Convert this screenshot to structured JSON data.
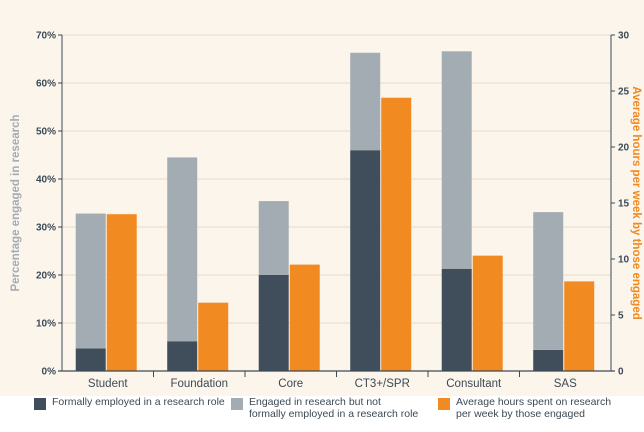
{
  "chart_data": {
    "type": "bar",
    "categories": [
      "Student",
      "Foundation",
      "Core",
      "CT3+/SPR",
      "Consultant",
      "SAS"
    ],
    "series": [
      {
        "name": "Formally employed in a research role",
        "axis": "left",
        "stack": "a",
        "values": [
          4.7,
          6.2,
          20.0,
          46.0,
          21.3,
          4.4
        ],
        "color": "#3f4e5a"
      },
      {
        "name": "Engaged in research but not formally employed in a research role",
        "axis": "left",
        "stack": "a",
        "values": [
          28.1,
          38.3,
          15.4,
          20.3,
          45.3,
          28.7
        ],
        "color": "#a4acb3"
      },
      {
        "name": "Average hours spent on research per week by those engaged",
        "axis": "right",
        "stack": "b",
        "values": [
          14.0,
          6.1,
          9.5,
          24.4,
          10.3,
          8.0
        ],
        "color": "#f18a21"
      }
    ],
    "ylabel": "Percentage engaged in research",
    "ylabel_right": "Average hours per week by those engaged",
    "ylim": [
      0,
      70
    ],
    "ylim_right": [
      0,
      30
    ],
    "yticks": [
      "0%",
      "10%",
      "20%",
      "30%",
      "40%",
      "50%",
      "60%",
      "70%"
    ],
    "yticks_right": [
      "0",
      "5",
      "10",
      "15",
      "20",
      "25",
      "30"
    ],
    "grid": true,
    "legend_position": "bottom"
  },
  "legend": [
    {
      "label": "Formally employed in a research role",
      "color": "#3f4e5a"
    },
    {
      "label": "Engaged in research but not\nformally employed in a research role",
      "color": "#a4acb3"
    },
    {
      "label": "Average hours spent on research\nper week by those engaged",
      "color": "#f18a21"
    }
  ]
}
